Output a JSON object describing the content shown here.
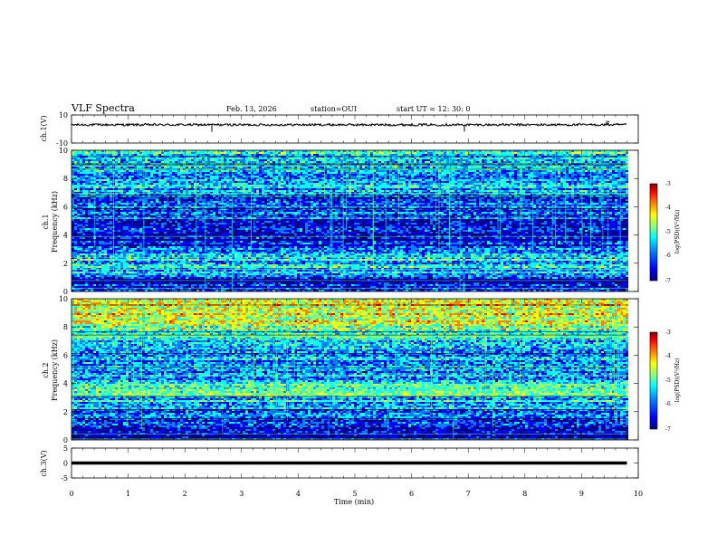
{
  "header": {
    "title": "VLF Spectra",
    "date": "Feb. 13, 2026",
    "station": "station=OUI",
    "start": "start  UT =   12: 30: 0"
  },
  "colors": {
    "spectrogram_colormap": [
      "#00007f",
      "#0000ff",
      "#007fff",
      "#00ffff",
      "#7fff7f",
      "#ffff00",
      "#ff7f00",
      "#ff0000",
      "#7f0000"
    ],
    "trace": "#000000"
  },
  "chart_data": [
    {
      "type": "line",
      "panel": "waveform-ch1",
      "ylabel": "ch.1(V)",
      "ylim": [
        -10,
        10
      ],
      "y_ticks": [
        "10",
        "-10"
      ],
      "x": [
        0,
        1,
        2,
        3,
        4,
        5,
        6,
        7,
        8,
        9,
        9.8
      ],
      "values": [
        3,
        3,
        3,
        3,
        3,
        3,
        3,
        3,
        3,
        3,
        3
      ]
    },
    {
      "type": "heatmap",
      "panel": "spectrogram-ch1",
      "ylabel_line1": "ch.1",
      "ylabel_line2": "Frequency (kHz)",
      "ylim": [
        0,
        10
      ],
      "y_ticks": [
        "0",
        "2",
        "4",
        "6",
        "8",
        "10"
      ],
      "xlim": [
        0,
        10
      ],
      "data_end_min": 9.8,
      "colorbar": {
        "label": "log(PSD)(V²/Hz)",
        "range": [
          -7,
          -3
        ],
        "ticks": [
          "-3",
          "-4",
          "-5",
          "-6",
          "-7"
        ]
      },
      "mean_log_psd_by_freq_khz": [
        [
          0.2,
          -6.5
        ],
        [
          0.8,
          -6.7
        ],
        [
          1.5,
          -5.8
        ],
        [
          2.5,
          -5.6
        ],
        [
          3.5,
          -6.6
        ],
        [
          4.2,
          -6.9
        ],
        [
          5.0,
          -6.4
        ],
        [
          6.0,
          -6.2
        ],
        [
          7.0,
          -6.0
        ],
        [
          8.0,
          -5.7
        ],
        [
          9.0,
          -5.6
        ],
        [
          10.0,
          -5.6
        ]
      ]
    },
    {
      "type": "heatmap",
      "panel": "spectrogram-ch2",
      "ylabel_line1": "ch.2",
      "ylabel_line2": "Frequency (kHz)",
      "ylim": [
        0,
        10
      ],
      "y_ticks": [
        "0",
        "2",
        "4",
        "6",
        "8",
        "10"
      ],
      "xlim": [
        0,
        10
      ],
      "data_end_min": 9.8,
      "colorbar": {
        "label": "log(PSD)(V²/Hz)",
        "range": [
          -7,
          -3
        ],
        "ticks": [
          "-3",
          "-4",
          "-5",
          "-6",
          "-7"
        ]
      },
      "mean_log_psd_by_freq_khz": [
        [
          0.2,
          -6.6
        ],
        [
          1.0,
          -6.3
        ],
        [
          2.0,
          -5.9
        ],
        [
          3.0,
          -5.7
        ],
        [
          3.5,
          -5.0
        ],
        [
          4.5,
          -6.0
        ],
        [
          5.5,
          -6.0
        ],
        [
          6.5,
          -5.8
        ],
        [
          7.5,
          -5.2
        ],
        [
          8.5,
          -4.8
        ],
        [
          9.5,
          -4.5
        ],
        [
          10.0,
          -4.5
        ]
      ]
    },
    {
      "type": "line",
      "panel": "waveform-ch3",
      "ylabel": "ch.3(V)",
      "ylim": [
        -5,
        5
      ],
      "y_ticks": [
        "5",
        "0",
        "-5"
      ],
      "x": [
        0,
        9.8
      ],
      "values": [
        0,
        0
      ]
    }
  ],
  "xaxis": {
    "label": "Time (min)",
    "ticks": [
      "0",
      "1",
      "2",
      "3",
      "4",
      "5",
      "6",
      "7",
      "8",
      "9",
      "10"
    ],
    "range": [
      0,
      10
    ]
  }
}
